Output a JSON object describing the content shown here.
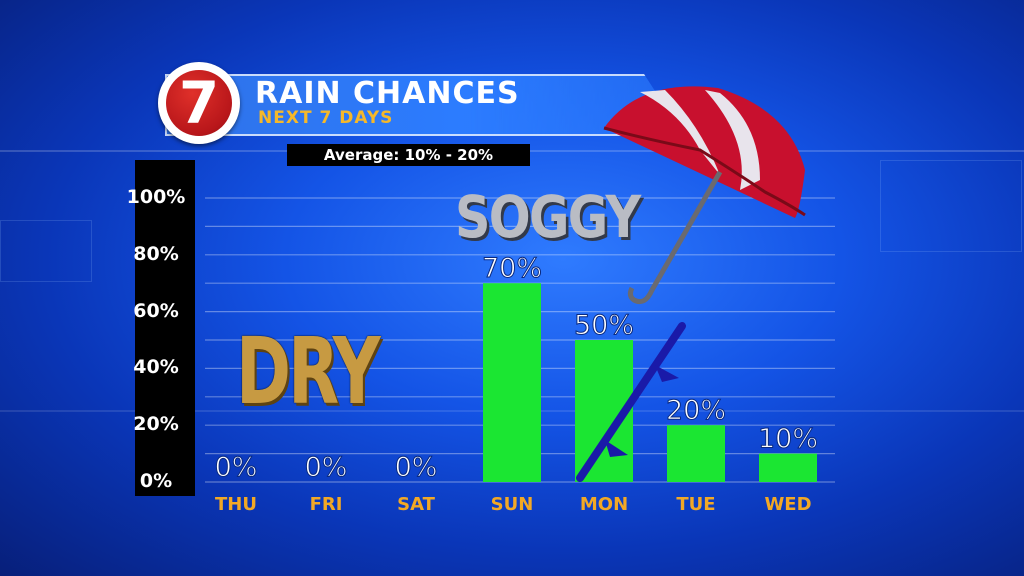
{
  "header": {
    "logo_text": "7",
    "title": "RAIN CHANCES",
    "subtitle": "NEXT 7 DAYS",
    "average": "Average: 10% - 20%"
  },
  "annotations": {
    "dry": "DRY",
    "soggy": "SOGGY"
  },
  "colors": {
    "bar": "#1be632",
    "day_label": "#f2a825",
    "background": "#1454e6",
    "cold_front": "#1a1aa8",
    "umbrella_red": "#c8102e"
  },
  "icons": [
    "seven-logo-icon",
    "umbrella-icon",
    "cold-front-icon"
  ],
  "chart_data": {
    "type": "bar",
    "title": "RAIN CHANCES",
    "subtitle": "NEXT 7 DAYS",
    "categories": [
      "THU",
      "FRI",
      "SAT",
      "SUN",
      "MON",
      "TUE",
      "WED"
    ],
    "values": [
      0,
      0,
      0,
      70,
      50,
      20,
      10
    ],
    "value_labels": [
      "0%",
      "0%",
      "0%",
      "70%",
      "50%",
      "20%",
      "10%"
    ],
    "y_ticks": [
      "0%",
      "20%",
      "40%",
      "60%",
      "80%",
      "100%"
    ],
    "ylim": [
      0,
      100
    ],
    "grid": true,
    "xlabel": "",
    "ylabel": ""
  }
}
